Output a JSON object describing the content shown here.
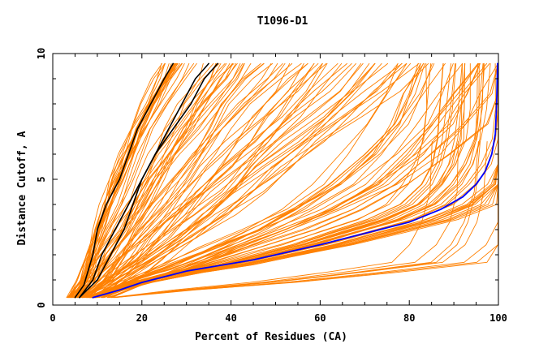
{
  "chart_data": {
    "type": "line",
    "title": "T1096-D1",
    "xlabel": "Percent of Residues (CA)",
    "ylabel": "Distance Cutoff, A",
    "xlim": [
      0,
      100
    ],
    "ylim": [
      0,
      10
    ],
    "x_ticks": [
      0,
      20,
      40,
      60,
      80,
      100
    ],
    "y_ticks": [
      0,
      5,
      10
    ],
    "grid": false,
    "legend": "none",
    "colors": {
      "bundle": "#ff8000",
      "highlight_blue": "#0000ff",
      "highlight_black": "#000000"
    },
    "bundles": [
      {
        "color": "#ff8000",
        "count": 25,
        "spread": 4.2,
        "curve": [
          [
            4.5,
            0.3
          ],
          [
            7,
            1.0
          ],
          [
            9,
            2.0
          ],
          [
            11,
            3.0
          ],
          [
            13,
            4.0
          ],
          [
            15,
            5.0
          ],
          [
            17.5,
            6.0
          ],
          [
            20,
            7.0
          ],
          [
            23,
            8.0
          ],
          [
            26,
            9.0
          ],
          [
            28,
            9.6
          ]
        ]
      },
      {
        "color": "#ff8000",
        "count": 30,
        "spread": 7,
        "curve": [
          [
            6,
            0.3
          ],
          [
            10,
            1.0
          ],
          [
            14,
            2.0
          ],
          [
            18,
            3.0
          ],
          [
            22,
            4.0
          ],
          [
            26,
            5.0
          ],
          [
            30,
            6.0
          ],
          [
            34,
            7.0
          ],
          [
            38,
            8.0
          ],
          [
            43,
            9.0
          ],
          [
            46,
            9.6
          ]
        ]
      },
      {
        "color": "#ff8000",
        "count": 30,
        "spread": 10,
        "curve": [
          [
            8,
            0.3
          ],
          [
            14,
            1.0
          ],
          [
            20,
            1.8
          ],
          [
            26,
            2.7
          ],
          [
            32,
            3.6
          ],
          [
            38,
            4.5
          ],
          [
            44,
            5.5
          ],
          [
            50,
            6.5
          ],
          [
            56,
            7.5
          ],
          [
            62,
            8.5
          ],
          [
            68,
            9.6
          ]
        ]
      },
      {
        "color": "#ff8000",
        "count": 25,
        "spread": 8,
        "curve": [
          [
            10,
            0.3
          ],
          [
            20,
            1.0
          ],
          [
            30,
            1.6
          ],
          [
            40,
            2.3
          ],
          [
            50,
            3.0
          ],
          [
            60,
            3.8
          ],
          [
            70,
            4.8
          ],
          [
            78,
            6.0
          ],
          [
            84,
            7.2
          ],
          [
            88,
            8.4
          ],
          [
            92,
            9.6
          ]
        ]
      },
      {
        "color": "#ff8000",
        "count": 35,
        "spread": 3,
        "curve": [
          [
            9,
            0.3
          ],
          [
            20,
            0.9
          ],
          [
            30,
            1.3
          ],
          [
            40,
            1.6
          ],
          [
            50,
            2.0
          ],
          [
            60,
            2.4
          ],
          [
            70,
            2.9
          ],
          [
            80,
            3.4
          ],
          [
            88,
            4.0
          ],
          [
            93,
            4.8
          ],
          [
            96,
            5.6
          ],
          [
            98,
            6.6
          ],
          [
            98.8,
            7.8
          ],
          [
            99.3,
            9.6
          ]
        ]
      },
      {
        "color": "#ff8000",
        "count": 8,
        "spread": 2,
        "curve": [
          [
            14,
            0.3
          ],
          [
            30,
            0.6
          ],
          [
            50,
            0.9
          ],
          [
            70,
            1.3
          ],
          [
            88,
            1.7
          ],
          [
            93,
            2.4
          ],
          [
            96,
            3.3
          ],
          [
            98,
            4.5
          ],
          [
            98.8,
            6.5
          ]
        ]
      }
    ],
    "series": [
      {
        "color": "#000000",
        "points": [
          [
            5,
            0.3
          ],
          [
            7,
            0.8
          ],
          [
            9,
            2.0
          ],
          [
            10,
            3.0
          ],
          [
            12,
            4.0
          ],
          [
            15,
            5.0
          ],
          [
            17,
            6.0
          ],
          [
            19,
            7.0
          ],
          [
            22,
            8.0
          ],
          [
            25,
            9.0
          ],
          [
            27,
            9.6
          ]
        ]
      },
      {
        "color": "#000000",
        "points": [
          [
            6,
            0.3
          ],
          [
            9,
            1.0
          ],
          [
            11,
            2.0
          ],
          [
            14,
            3.0
          ],
          [
            17,
            4.0
          ],
          [
            20,
            5.0
          ],
          [
            23,
            6.0
          ],
          [
            26,
            7.0
          ],
          [
            29,
            8.0
          ],
          [
            32,
            9.0
          ],
          [
            35,
            9.6
          ]
        ]
      },
      {
        "color": "#000000",
        "points": [
          [
            6,
            0.3
          ],
          [
            10,
            1.0
          ],
          [
            13,
            2.0
          ],
          [
            16,
            3.0
          ],
          [
            18,
            4.0
          ],
          [
            20,
            5.0
          ],
          [
            23,
            6.0
          ],
          [
            27,
            7.0
          ],
          [
            31,
            8.0
          ],
          [
            34,
            9.0
          ],
          [
            37,
            9.6
          ]
        ]
      },
      {
        "color": "#0000ff",
        "points": [
          [
            9,
            0.3
          ],
          [
            15,
            0.6
          ],
          [
            20,
            0.9
          ],
          [
            30,
            1.35
          ],
          [
            45,
            1.8
          ],
          [
            60,
            2.4
          ],
          [
            70,
            2.85
          ],
          [
            80,
            3.3
          ],
          [
            87,
            3.8
          ],
          [
            92,
            4.3
          ],
          [
            95,
            4.8
          ],
          [
            97,
            5.3
          ],
          [
            98.5,
            6.0
          ],
          [
            99.3,
            6.8
          ],
          [
            99.6,
            8.0
          ],
          [
            99.8,
            9.6
          ]
        ]
      }
    ]
  }
}
